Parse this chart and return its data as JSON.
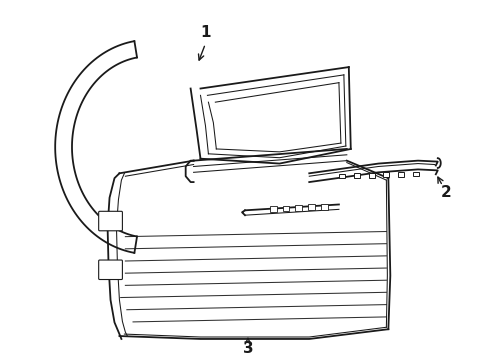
{
  "background_color": "#ffffff",
  "line_color": "#1a1a1a",
  "label1": "1",
  "label2": "2",
  "label3": "3",
  "figsize": [
    4.89,
    3.6
  ],
  "dpi": 100,
  "lw_main": 1.3,
  "lw_thin": 0.75,
  "lw_thick": 1.8
}
